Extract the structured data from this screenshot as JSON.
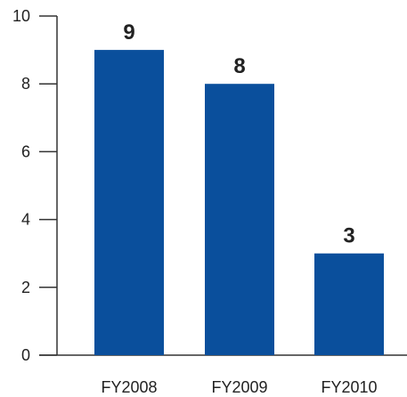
{
  "chart_data": {
    "type": "bar",
    "title": "",
    "xlabel": "",
    "ylabel": "",
    "categories": [
      "FY2008",
      "FY2009",
      "FY2010"
    ],
    "values": [
      9,
      8,
      3
    ],
    "data_labels": [
      "9",
      "8",
      "3"
    ],
    "ylim": [
      0,
      10
    ],
    "yticks": [
      0,
      2,
      4,
      6,
      8,
      10
    ],
    "grid": false,
    "legend": "none",
    "colors": {
      "bar": "#0a4f9c",
      "axis": "#333333",
      "text": "#222222"
    }
  }
}
